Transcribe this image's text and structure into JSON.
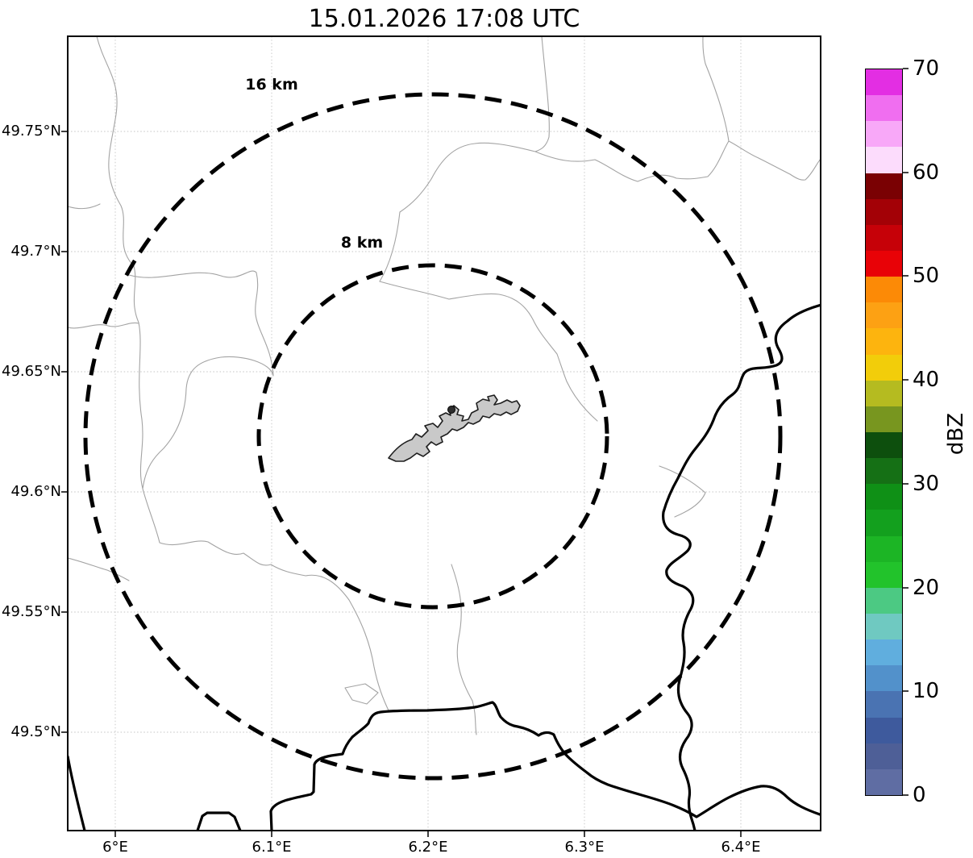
{
  "title": "15.01.2026 17:08 UTC",
  "map": {
    "y_axis": {
      "ticks": [
        "49.75°N",
        "49.7°N",
        "49.65°N",
        "49.6°N",
        "49.55°N",
        "49.5°N"
      ]
    },
    "x_axis": {
      "ticks": [
        "6°E",
        "6.1°E",
        "6.2°E",
        "6.3°E",
        "6.4°E"
      ]
    },
    "range_rings": [
      {
        "label": "16 km",
        "radius_km": 16
      },
      {
        "label": "8 km",
        "radius_km": 8
      }
    ],
    "site_polygon_fill": "#c9c9c9",
    "boundary_thin_color": "#a3a3a3",
    "boundary_thick_color": "#000000"
  },
  "colorbar": {
    "label": "dBZ",
    "min": 0,
    "max": 70,
    "step_dbz": 2.5,
    "tick_labels": [
      "0",
      "10",
      "20",
      "30",
      "40",
      "50",
      "60",
      "70"
    ],
    "colors_bottom_to_top": [
      "#5f6da3",
      "#4e5f97",
      "#3e5a9d",
      "#4a73b2",
      "#5291cb",
      "#60aede",
      "#6fc9c1",
      "#4cc983",
      "#22c32b",
      "#1cb525",
      "#13a01e",
      "#0f9016",
      "#157015",
      "#0d4f0d",
      "#78961f",
      "#b5bb20",
      "#f2cd0a",
      "#fdb40e",
      "#fda113",
      "#fc8a06",
      "#e80207",
      "#c60108",
      "#a30106",
      "#7a0103",
      "#fcdcfc",
      "#f8a8f8",
      "#f06ef0",
      "#e32ee3"
    ]
  },
  "chart_data": {
    "type": "map",
    "title": "15.01.2026 17:08 UTC",
    "lat_ticks_deg_n": [
      49.75,
      49.7,
      49.65,
      49.6,
      49.55,
      49.5
    ],
    "lon_ticks_deg_e": [
      6.0,
      6.1,
      6.2,
      6.3,
      6.4
    ],
    "range_rings_km": [
      8,
      16
    ],
    "colorbar_label": "dBZ",
    "colorbar_range": [
      0,
      70
    ],
    "colorbar_tick_step": 10
  }
}
